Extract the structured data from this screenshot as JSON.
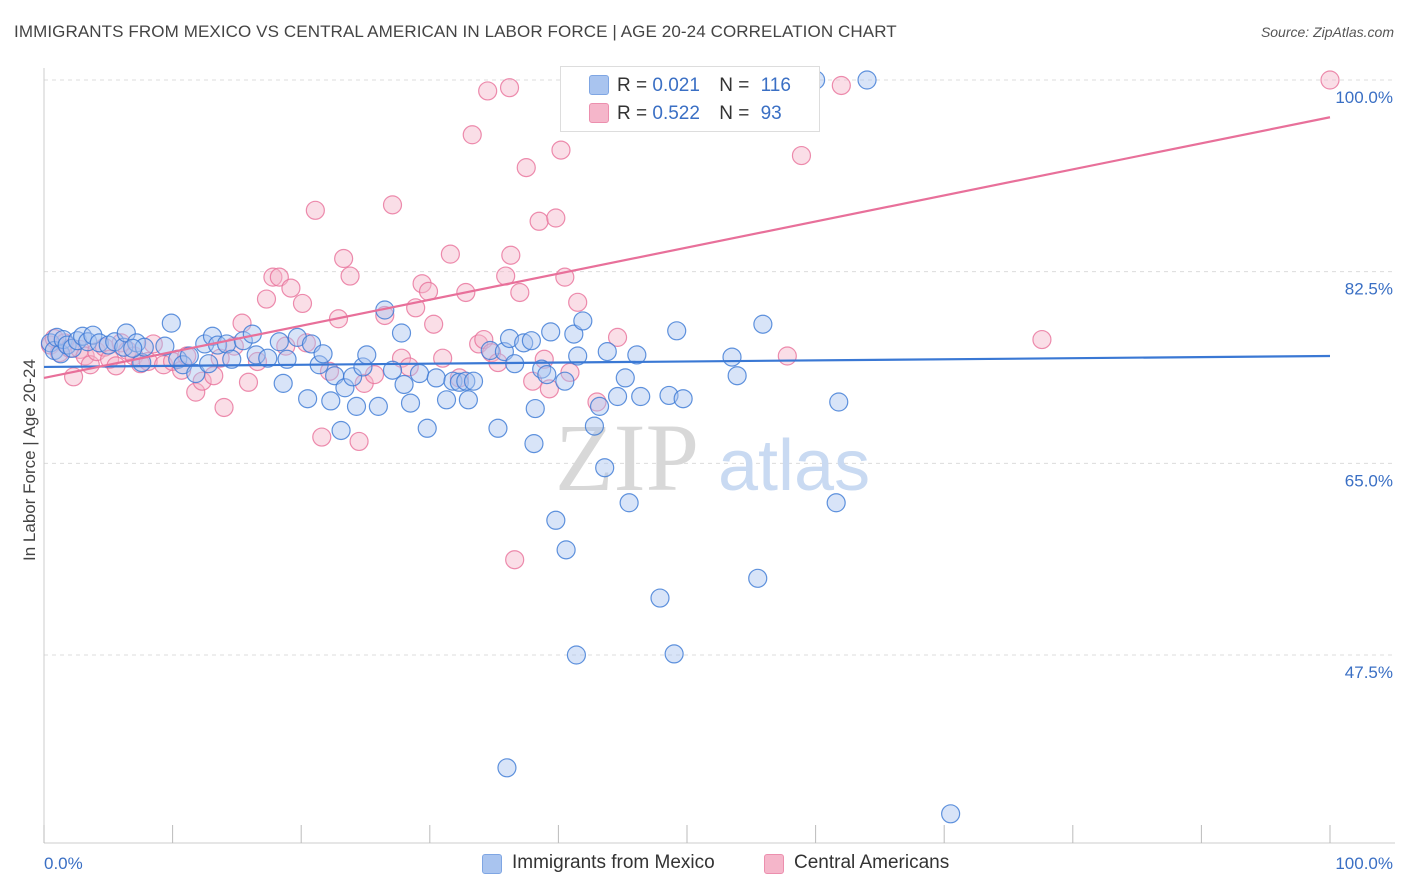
{
  "title": "IMMIGRANTS FROM MEXICO VS CENTRAL AMERICAN IN LABOR FORCE | AGE 20-24 CORRELATION CHART",
  "source": "Source: ZipAtlas.com",
  "watermark": {
    "zip": "ZIP",
    "atlas": "atlas"
  },
  "legend": {
    "rows": [
      {
        "r_label": "R =",
        "r_value": "0.021",
        "n_label": "N =",
        "n_value": "116",
        "color": "#a9c4ef"
      },
      {
        "r_label": "R =",
        "r_value": "0.522",
        "n_label": "N =",
        "n_value": "93",
        "color": "#f5b6ca"
      }
    ]
  },
  "bottom_legend": {
    "series1": "Immigrants from Mexico",
    "series2": "Central Americans"
  },
  "chart_data": {
    "type": "scatter",
    "title": "IMMIGRANTS FROM MEXICO VS CENTRAL AMERICAN IN LABOR FORCE | AGE 20-24 CORRELATION CHART",
    "xlabel": "",
    "ylabel": "In Labor Force | Age 20-24",
    "x_tick_labels": [
      "0.0%",
      "100.0%"
    ],
    "y_tick_labels": [
      "100.0%",
      "82.5%",
      "65.0%",
      "47.5%"
    ],
    "y_ticks": [
      100,
      82.5,
      65,
      47.5
    ],
    "xlim": [
      0,
      100
    ],
    "ylim": [
      31,
      102
    ],
    "grid": "horizontal dashed",
    "colors": {
      "blue": "#3a78d4",
      "pink": "#e8709a",
      "blue_fill": "#a9c4ef",
      "pink_fill": "#f5b6ca"
    },
    "series": [
      {
        "name": "Immigrants from Mexico",
        "color": "#3a78d4",
        "trend": {
          "x": [
            0,
            100
          ],
          "y": [
            73.8,
            74.8
          ]
        },
        "points": [
          [
            0.5,
            76.0
          ],
          [
            0.8,
            75.3
          ],
          [
            1.0,
            76.5
          ],
          [
            1.3,
            75.0
          ],
          [
            1.5,
            76.3
          ],
          [
            1.8,
            75.8
          ],
          [
            2.2,
            75.5
          ],
          [
            2.6,
            76.2
          ],
          [
            3.0,
            76.6
          ],
          [
            3.4,
            76.1
          ],
          [
            3.8,
            76.7
          ],
          [
            4.3,
            76.0
          ],
          [
            5.0,
            75.8
          ],
          [
            5.5,
            76.1
          ],
          [
            6.2,
            75.6
          ],
          [
            6.4,
            76.9
          ],
          [
            7.2,
            76.0
          ],
          [
            7.6,
            74.2
          ],
          [
            7.8,
            75.6
          ],
          [
            9.4,
            75.7
          ],
          [
            9.9,
            77.8
          ],
          [
            10.4,
            74.5
          ],
          [
            10.8,
            74.0
          ],
          [
            11.3,
            74.8
          ],
          [
            11.8,
            73.2
          ],
          [
            12.5,
            75.9
          ],
          [
            13.1,
            76.6
          ],
          [
            13.5,
            75.8
          ],
          [
            14.2,
            75.9
          ],
          [
            14.6,
            74.5
          ],
          [
            15.5,
            76.2
          ],
          [
            16.2,
            76.8
          ],
          [
            16.5,
            74.9
          ],
          [
            17.4,
            74.6
          ],
          [
            18.6,
            72.3
          ],
          [
            18.9,
            74.5
          ],
          [
            19.7,
            76.5
          ],
          [
            20.5,
            70.9
          ],
          [
            20.8,
            75.9
          ],
          [
            21.4,
            74.0
          ],
          [
            21.7,
            75.0
          ],
          [
            22.3,
            70.7
          ],
          [
            22.6,
            73.0
          ],
          [
            23.1,
            68.0
          ],
          [
            23.4,
            71.9
          ],
          [
            24.0,
            72.9
          ],
          [
            24.3,
            70.2
          ],
          [
            24.8,
            73.8
          ],
          [
            25.1,
            74.9
          ],
          [
            26.0,
            70.2
          ],
          [
            26.5,
            79.0
          ],
          [
            27.1,
            73.5
          ],
          [
            27.8,
            76.9
          ],
          [
            28.0,
            72.2
          ],
          [
            29.2,
            73.2
          ],
          [
            29.8,
            68.2
          ],
          [
            30.5,
            72.8
          ],
          [
            31.3,
            70.8
          ],
          [
            31.8,
            72.5
          ],
          [
            32.3,
            72.4
          ],
          [
            32.8,
            72.5
          ],
          [
            33.0,
            70.8
          ],
          [
            33.4,
            72.5
          ],
          [
            34.7,
            75.3
          ],
          [
            35.3,
            68.2
          ],
          [
            35.8,
            75.2
          ],
          [
            36.2,
            76.4
          ],
          [
            36.6,
            74.1
          ],
          [
            37.3,
            76.0
          ],
          [
            38.1,
            66.8
          ],
          [
            38.7,
            73.6
          ],
          [
            38.2,
            70.0
          ],
          [
            39.1,
            73.1
          ],
          [
            39.4,
            77.0
          ],
          [
            39.8,
            59.8
          ],
          [
            40.6,
            57.1
          ],
          [
            40.5,
            72.5
          ],
          [
            41.2,
            76.8
          ],
          [
            41.5,
            74.8
          ],
          [
            41.4,
            47.5
          ],
          [
            41.9,
            78.0
          ],
          [
            42.8,
            68.4
          ],
          [
            43.2,
            70.2
          ],
          [
            43.8,
            75.2
          ],
          [
            43.6,
            64.6
          ],
          [
            44.6,
            71.1
          ],
          [
            45.2,
            72.8
          ],
          [
            45.5,
            61.4
          ],
          [
            46.1,
            74.9
          ],
          [
            46.4,
            71.1
          ],
          [
            47.9,
            52.7
          ],
          [
            48.6,
            71.2
          ],
          [
            49.2,
            77.1
          ],
          [
            49.7,
            70.9
          ],
          [
            49.0,
            47.6
          ],
          [
            50.2,
            100.0
          ],
          [
            53.5,
            74.7
          ],
          [
            53.9,
            73.0
          ],
          [
            55.5,
            54.5
          ],
          [
            55.9,
            77.7
          ],
          [
            58.6,
            100.0
          ],
          [
            60.0,
            100.0
          ],
          [
            61.6,
            61.4
          ],
          [
            61.8,
            70.6
          ],
          [
            70.5,
            33.0
          ],
          [
            36.0,
            37.2
          ],
          [
            52.0,
            100.0
          ],
          [
            48.0,
            100.0
          ],
          [
            64.0,
            100.0
          ],
          [
            45.0,
            100.0
          ],
          [
            46.5,
            100.0
          ],
          [
            37.9,
            76.2
          ],
          [
            28.5,
            70.5
          ],
          [
            18.3,
            76.1
          ],
          [
            12.8,
            74.1
          ],
          [
            6.9,
            75.5
          ]
        ]
      },
      {
        "name": "Central Americans",
        "color": "#e8709a",
        "trend": {
          "x": [
            0,
            100
          ],
          "y": [
            72.8,
            96.6
          ]
        },
        "points": [
          [
            0.5,
            75.8
          ],
          [
            0.8,
            76.4
          ],
          [
            1.2,
            75.1
          ],
          [
            1.6,
            76.0
          ],
          [
            2.0,
            75.5
          ],
          [
            2.3,
            72.9
          ],
          [
            2.8,
            75.4
          ],
          [
            3.2,
            74.8
          ],
          [
            3.6,
            74.0
          ],
          [
            4.1,
            75.2
          ],
          [
            4.7,
            75.6
          ],
          [
            5.1,
            74.5
          ],
          [
            5.6,
            73.9
          ],
          [
            6.0,
            76.0
          ],
          [
            6.5,
            75.3
          ],
          [
            7.0,
            74.8
          ],
          [
            7.5,
            74.1
          ],
          [
            8.1,
            74.3
          ],
          [
            8.5,
            75.9
          ],
          [
            9.3,
            74.0
          ],
          [
            10.0,
            74.3
          ],
          [
            10.7,
            73.5
          ],
          [
            11.1,
            74.8
          ],
          [
            11.8,
            71.5
          ],
          [
            12.3,
            72.5
          ],
          [
            13.2,
            73.0
          ],
          [
            13.7,
            74.6
          ],
          [
            14.0,
            70.1
          ],
          [
            14.8,
            75.7
          ],
          [
            15.4,
            77.8
          ],
          [
            15.9,
            72.4
          ],
          [
            16.6,
            74.3
          ],
          [
            17.3,
            80.0
          ],
          [
            17.8,
            82.0
          ],
          [
            18.3,
            82.0
          ],
          [
            18.8,
            75.7
          ],
          [
            19.2,
            81.0
          ],
          [
            20.1,
            79.6
          ],
          [
            20.4,
            76.0
          ],
          [
            21.1,
            88.1
          ],
          [
            21.6,
            67.4
          ],
          [
            22.2,
            73.4
          ],
          [
            22.9,
            78.2
          ],
          [
            23.3,
            83.7
          ],
          [
            23.8,
            82.1
          ],
          [
            24.5,
            67.0
          ],
          [
            24.9,
            72.3
          ],
          [
            25.7,
            73.1
          ],
          [
            26.5,
            78.5
          ],
          [
            27.1,
            88.6
          ],
          [
            27.8,
            74.6
          ],
          [
            28.4,
            73.8
          ],
          [
            28.9,
            79.2
          ],
          [
            29.4,
            81.4
          ],
          [
            29.9,
            80.7
          ],
          [
            30.3,
            77.7
          ],
          [
            31.0,
            74.6
          ],
          [
            31.6,
            84.1
          ],
          [
            32.3,
            72.8
          ],
          [
            32.8,
            80.6
          ],
          [
            33.3,
            95.0
          ],
          [
            33.8,
            75.9
          ],
          [
            34.2,
            76.3
          ],
          [
            34.8,
            75.1
          ],
          [
            35.3,
            74.2
          ],
          [
            35.9,
            82.1
          ],
          [
            36.3,
            84.0
          ],
          [
            36.6,
            56.2
          ],
          [
            37.0,
            80.6
          ],
          [
            37.5,
            92.0
          ],
          [
            38.0,
            72.5
          ],
          [
            38.5,
            87.1
          ],
          [
            38.9,
            74.5
          ],
          [
            39.3,
            71.8
          ],
          [
            39.8,
            87.4
          ],
          [
            40.2,
            93.6
          ],
          [
            40.5,
            82.0
          ],
          [
            40.9,
            73.3
          ],
          [
            41.5,
            79.7
          ],
          [
            42.0,
            97.5
          ],
          [
            43.0,
            70.6
          ],
          [
            44.6,
            76.5
          ],
          [
            45.3,
            96.9
          ],
          [
            46.7,
            100.0
          ],
          [
            48.0,
            99.5
          ],
          [
            50.9,
            99.8
          ],
          [
            57.8,
            74.8
          ],
          [
            58.9,
            93.1
          ],
          [
            77.6,
            76.3
          ],
          [
            100.0,
            100.0
          ],
          [
            36.2,
            99.3
          ],
          [
            34.5,
            99.0
          ],
          [
            62.0,
            99.5
          ]
        ]
      }
    ]
  }
}
